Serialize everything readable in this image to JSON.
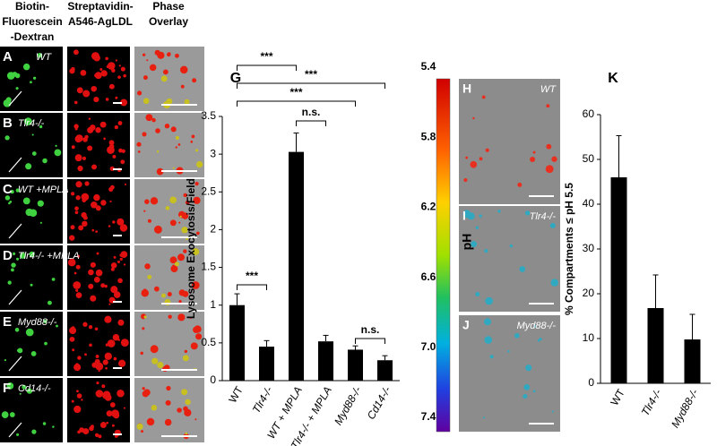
{
  "panels": {
    "headers": [
      "Biotin-",
      "Fluorescein",
      "-Dextran",
      "Streptavidin-",
      "A546-AgLDL",
      "Phase",
      "Overlay"
    ],
    "rows": [
      {
        "letter": "A",
        "label": "WT"
      },
      {
        "letter": "B",
        "label": "Tlr4-/-"
      },
      {
        "letter": "C",
        "label": "WT +MPLA"
      },
      {
        "letter": "D",
        "label": "Tlr4-/- +MPLA"
      },
      {
        "letter": "E",
        "label": "Myd88-/-"
      },
      {
        "letter": "F",
        "label": "Cd14-/-"
      }
    ],
    "ph_images": [
      {
        "letter": "H",
        "label": "WT"
      },
      {
        "letter": "I",
        "label": "Tlr4-/-"
      },
      {
        "letter": "J",
        "label": "Myd88-/-"
      }
    ],
    "colorbar": {
      "label": "pH",
      "lim": [
        5.4,
        7.4
      ],
      "ticks": [
        5.4,
        5.8,
        6.2,
        6.6,
        {
          "value": 7,
          "label": "7.0"
        },
        7.4
      ]
    }
  },
  "chart_data": [
    {
      "type": "bar",
      "panel": "G",
      "y_label": "Lysosome Exocytosis/Field",
      "categories": [
        "WT",
        "Tlr4-/-",
        "WT + MPLA",
        "Tlr4-/- + MPLA",
        "Myd88-/-",
        "Cd14-/-"
      ],
      "values": [
        1.0,
        0.45,
        3.03,
        0.52,
        0.41,
        0.27
      ],
      "errors": [
        0.15,
        0.08,
        0.25,
        0.08,
        0.05,
        0.06
      ],
      "color": "#000000",
      "ylim": [
        0,
        3.5
      ],
      "yticks": [
        0,
        0.5,
        1,
        1.5,
        2,
        2.5,
        3,
        3.5
      ],
      "annotations": [
        {
          "text": "***",
          "from": 0,
          "to": 2
        },
        {
          "text": "***",
          "from": 0,
          "to": 5
        },
        {
          "text": "***",
          "from": 0,
          "to": 4
        },
        {
          "text": "n.s.",
          "from": 2,
          "to": 3
        },
        {
          "text": "***",
          "from": 0,
          "to": 1
        },
        {
          "text": "n.s.",
          "from": 4,
          "to": 5
        }
      ]
    },
    {
      "type": "bar",
      "panel": "K",
      "y_label": "% Compartments ≤ pH 5.5",
      "categories": [
        "WT",
        "Tlr4-/-",
        "Myd88-/-"
      ],
      "values": [
        46,
        16.8,
        9.8
      ],
      "errors": [
        9.3,
        7.4,
        5.6
      ],
      "color": "#000000",
      "ylim": [
        0,
        60
      ],
      "yticks": [
        0,
        10,
        20,
        30,
        40,
        50,
        60
      ]
    }
  ]
}
